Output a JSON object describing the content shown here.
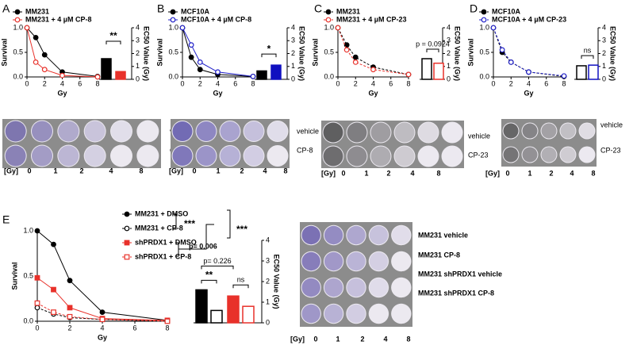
{
  "panel_labels": [
    "A",
    "B",
    "C",
    "D",
    "E"
  ],
  "chart_data": [
    {
      "type": "line",
      "x_label": "Gy",
      "y_label": "Survival",
      "x": [
        0,
        1,
        2,
        4,
        8
      ],
      "xlim": [
        0,
        8
      ],
      "xticks": [
        0,
        2,
        4,
        6,
        8
      ],
      "ylim": [
        0,
        1
      ],
      "yticks": [
        {
          "value": 0,
          "label": "0.0"
        },
        {
          "value": 0.5,
          "label": "0.5"
        },
        {
          "value": 1,
          "label": "1.0"
        }
      ],
      "series": [
        {
          "name": "MM231",
          "color": "#000000",
          "marker": "circle",
          "fill": "filled",
          "dashed": false,
          "values": [
            1.0,
            0.8,
            0.45,
            0.1,
            0.01
          ]
        },
        {
          "name": "MM231 + 4 µM CP-8",
          "color": "#e8312a",
          "marker": "circle",
          "fill": "open",
          "dashed": false,
          "values": [
            1.0,
            0.3,
            0.15,
            0.03,
            0.0
          ]
        }
      ]
    },
    {
      "type": "bar",
      "y_label": "EC50 Value (Gy)",
      "categories": [
        null,
        null
      ],
      "values": [
        1.6,
        0.6
      ],
      "colors": [
        "#000000",
        "#e8312a"
      ],
      "fills": [
        "filled",
        "filled"
      ],
      "ylim": [
        0,
        4
      ],
      "yticks": [
        0,
        1,
        2,
        3,
        4
      ],
      "annotations": [
        "**"
      ]
    },
    {
      "type": "line",
      "x_label": "Gy",
      "y_label": "Survival",
      "x": [
        0,
        1,
        2,
        4,
        8
      ],
      "xlim": [
        0,
        8
      ],
      "xticks": [
        0,
        2,
        4,
        6,
        8
      ],
      "ylim": [
        0,
        1
      ],
      "yticks": [
        {
          "value": 0,
          "label": "0.0"
        },
        {
          "value": 0.5,
          "label": "0.5"
        },
        {
          "value": 1,
          "label": "1.0"
        }
      ],
      "series": [
        {
          "name": "MCF10A",
          "color": "#000000",
          "marker": "circle",
          "fill": "filled",
          "dashed": false,
          "values": [
            1.0,
            0.4,
            0.15,
            0.05,
            0.01
          ]
        },
        {
          "name": "MCF10A + 4 µM CP-8",
          "color": "#2020c8",
          "marker": "circle",
          "fill": "open",
          "dashed": false,
          "values": [
            1.0,
            0.65,
            0.3,
            0.1,
            0.01
          ]
        }
      ]
    },
    {
      "type": "bar",
      "y_label": "EC50 Value (Gy)",
      "categories": [
        null,
        null
      ],
      "values": [
        0.65,
        1.1
      ],
      "colors": [
        "#000000",
        "#1010c0"
      ],
      "fills": [
        "filled",
        "filled"
      ],
      "ylim": [
        0,
        4
      ],
      "yticks": [
        0,
        1,
        2,
        3,
        4
      ],
      "annotations": [
        "*"
      ]
    },
    {
      "type": "line",
      "x_label": "Gy",
      "y_label": "Survival",
      "x": [
        0,
        1,
        2,
        4,
        8
      ],
      "xlim": [
        0,
        8
      ],
      "xticks": [
        0,
        2,
        4,
        6,
        8
      ],
      "ylim": [
        0,
        1
      ],
      "yticks": [
        {
          "value": 0,
          "label": "0.0"
        },
        {
          "value": 0.5,
          "label": "0.5"
        },
        {
          "value": 1,
          "label": "1.0"
        }
      ],
      "series": [
        {
          "name": "MM231",
          "color": "#000000",
          "marker": "circle",
          "fill": "filled",
          "dashed": true,
          "values": [
            1.0,
            0.65,
            0.4,
            0.2,
            0.05
          ]
        },
        {
          "name": "MM231 + 4 µM CP-23",
          "color": "#e8312a",
          "marker": "circle",
          "fill": "open",
          "dashed": true,
          "values": [
            1.0,
            0.55,
            0.3,
            0.15,
            0.05
          ]
        }
      ]
    },
    {
      "type": "bar",
      "y_label": "EC50 Value (Gy)",
      "categories": [
        null,
        null
      ],
      "values": [
        1.6,
        1.25
      ],
      "colors": [
        "#000000",
        "#e8312a"
      ],
      "fills": [
        "open",
        "open"
      ],
      "ylim": [
        0,
        4
      ],
      "yticks": [
        0,
        1,
        2,
        3,
        4
      ],
      "annotations": [
        "p = 0.0924"
      ]
    },
    {
      "type": "line",
      "x_label": "Gy",
      "y_label": "Survival",
      "x": [
        0,
        1,
        2,
        4,
        8
      ],
      "xlim": [
        0,
        8
      ],
      "xticks": [
        0,
        2,
        4,
        6,
        8
      ],
      "ylim": [
        0,
        1
      ],
      "yticks": [
        {
          "value": 0,
          "label": "0.0"
        },
        {
          "value": 0.5,
          "label": "0.5"
        },
        {
          "value": 1,
          "label": "1.0"
        }
      ],
      "series": [
        {
          "name": "MCF10A",
          "color": "#000000",
          "marker": "circle",
          "fill": "filled",
          "dashed": true,
          "values": [
            1.0,
            0.5,
            0.3,
            0.1,
            0.01
          ]
        },
        {
          "name": "MCF10A + 4 µM CP-23",
          "color": "#2020c8",
          "marker": "circle",
          "fill": "open",
          "dashed": true,
          "values": [
            1.0,
            0.55,
            0.3,
            0.1,
            0.02
          ]
        }
      ]
    },
    {
      "type": "bar",
      "y_label": "EC50 Value (Gy)",
      "categories": [
        null,
        null
      ],
      "values": [
        1.05,
        1.1
      ],
      "colors": [
        "#000000",
        "#1010c0"
      ],
      "fills": [
        "open",
        "open"
      ],
      "ylim": [
        0,
        4
      ],
      "yticks": [
        0,
        1,
        2,
        3,
        4
      ],
      "annotations": [
        "ns"
      ]
    },
    {
      "type": "line",
      "x_label": "Gy",
      "y_label": "Survival",
      "x": [
        0,
        1,
        2,
        4,
        8
      ],
      "xlim": [
        0,
        8
      ],
      "xticks": [
        0,
        2,
        4,
        6,
        8
      ],
      "ylim": [
        0,
        1
      ],
      "yticks": [
        {
          "value": 0,
          "label": "0.0"
        },
        {
          "value": 0.5,
          "label": "0.5"
        },
        {
          "value": 1,
          "label": "1.0"
        }
      ],
      "series": [
        {
          "name": "MM231 + DMSO",
          "color": "#000000",
          "marker": "circle",
          "fill": "filled",
          "dashed": false,
          "values": [
            1.0,
            0.85,
            0.45,
            0.1,
            0.01
          ]
        },
        {
          "name": "MM231 + CP-8",
          "color": "#000000",
          "marker": "circle",
          "fill": "open",
          "dashed": true,
          "values": [
            0.15,
            0.08,
            0.04,
            0.02,
            0.0
          ]
        },
        {
          "name": "shPRDX1 + DMSO",
          "color": "#e8312a",
          "marker": "square",
          "fill": "filled",
          "dashed": false,
          "values": [
            0.48,
            0.35,
            0.15,
            0.03,
            0.01
          ]
        },
        {
          "name": "shPRDX1 + CP-8",
          "color": "#e8312a",
          "marker": "square",
          "fill": "open",
          "dashed": true,
          "values": [
            0.2,
            0.1,
            0.05,
            0.02,
            0.0
          ]
        }
      ],
      "annotations": [
        "***",
        "p= 0.006",
        "***"
      ]
    },
    {
      "type": "bar",
      "y_label": "EC50 Value (Gy)",
      "categories": [
        null,
        null,
        null,
        null
      ],
      "values": [
        1.6,
        0.6,
        1.3,
        0.8
      ],
      "colors": [
        "#000000",
        "#000000",
        "#e8312a",
        "#e8312a"
      ],
      "fills": [
        "filled",
        "open",
        "filled",
        "open"
      ],
      "ylim": [
        0,
        4
      ],
      "yticks": [
        0,
        1,
        2,
        3,
        4
      ],
      "annotations": [
        "**",
        "ns",
        "p= 0.226"
      ]
    }
  ],
  "plates": [
    {
      "rows": [
        "vehicle",
        "CP-8"
      ],
      "dose_label": "[Gy]",
      "doses": [
        0,
        1,
        2,
        4,
        8
      ]
    },
    {
      "rows": [
        "vehicle",
        "CP-8"
      ],
      "dose_label": "[Gy]",
      "doses": [
        0,
        1,
        2,
        4,
        8
      ]
    },
    {
      "rows": [
        "vehicle",
        "CP-23"
      ],
      "dose_label": "[Gy]",
      "doses": [
        0,
        1,
        2,
        4,
        8
      ]
    },
    {
      "rows": [
        "vehicle",
        "CP-23"
      ],
      "dose_label": "[Gy]",
      "doses": [
        0,
        1,
        2,
        4,
        8
      ]
    },
    {
      "rows": [
        "MM231 vehicle",
        "MM231 CP-8",
        "MM231 shPRDX1 vehicle",
        "MM231 shPRDX1 CP-8"
      ],
      "dose_label": "[Gy]",
      "doses": [
        0,
        1,
        2,
        4,
        8
      ]
    }
  ]
}
